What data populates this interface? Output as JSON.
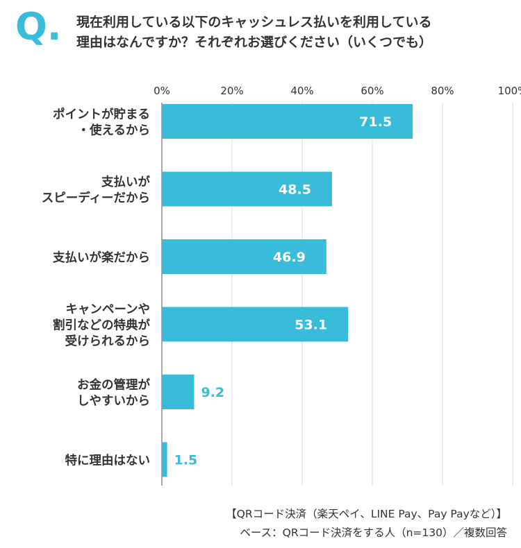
{
  "header": {
    "q_mark": "Q.",
    "question_line1": "現在利用している以下のキャッシュレス払いを利用している",
    "question_line2": "理由はなんですか？それぞれお選びください（いくつでも）"
  },
  "chart_data": {
    "type": "bar",
    "orientation": "horizontal",
    "categories": [
      [
        "ポイントが貯まる",
        "・使えるから"
      ],
      [
        "支払いが",
        "スピーディーだから"
      ],
      [
        "支払いが楽だから"
      ],
      [
        "キャンペーンや",
        "割引などの特典が",
        "受けられるから"
      ],
      [
        "お金の管理が",
        "しやすいから"
      ],
      [
        "特に理由はない"
      ]
    ],
    "values": [
      71.5,
      48.5,
      46.9,
      53.1,
      9.2,
      1.5
    ],
    "value_labels": [
      "71.5",
      "48.5",
      "46.9",
      "53.1",
      "9.2",
      "1.5"
    ],
    "x_ticks": [
      "0%",
      "20%",
      "40%",
      "60%",
      "80%",
      "100%"
    ],
    "xlim": [
      0,
      100
    ],
    "grid": true,
    "bar_color": "#38bcd9",
    "label_inside_color": "#ffffff",
    "label_outside_color": "#38bcd9"
  },
  "footer": {
    "line1": "【QRコード決済（楽天ペイ、LINE Pay、Pay Payなど）】",
    "line2": "ベース：QRコード決済をする人（n=130）／複数回答"
  }
}
